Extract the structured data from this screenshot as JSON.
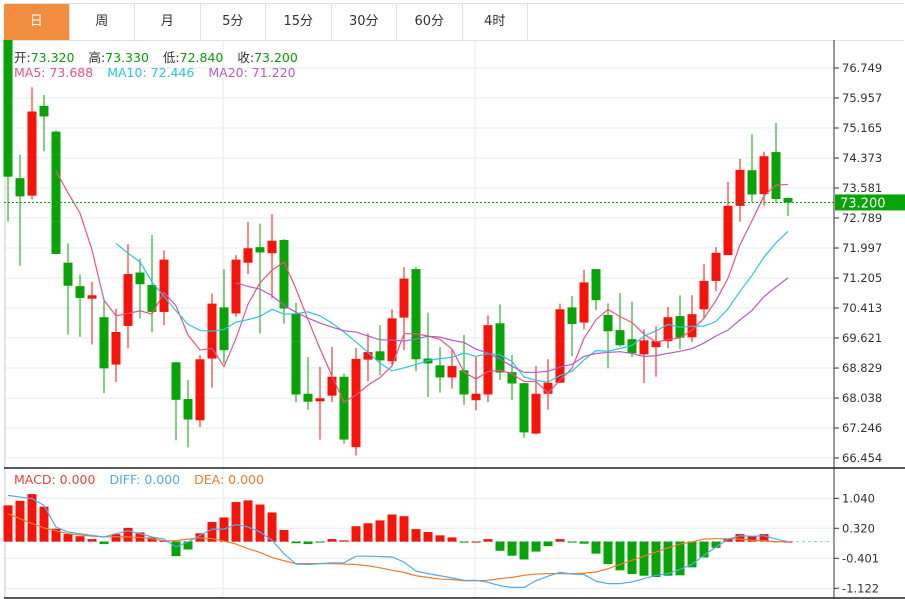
{
  "tabs": [
    {
      "label": "日",
      "active": true
    },
    {
      "label": "周",
      "active": false
    },
    {
      "label": "月",
      "active": false
    },
    {
      "label": "5分",
      "active": false
    },
    {
      "label": "15分",
      "active": false
    },
    {
      "label": "30分",
      "active": false
    },
    {
      "label": "60分",
      "active": false
    },
    {
      "label": "4时",
      "active": false
    }
  ],
  "ohlc_legend": {
    "open_label": "开:",
    "open": "73.320",
    "high_label": "高:",
    "high": "73.330",
    "low_label": "低:",
    "low": "72.840",
    "close_label": "收:",
    "close": "73.200"
  },
  "ma_legend": {
    "ma5": "MA5: 73.688",
    "ma10": "MA10: 72.446",
    "ma20": "MA20: 71.220"
  },
  "macd_legend": {
    "macd": "MACD: 0.000",
    "diff": "DIFF: 0.000",
    "dea": "DEA: 0.000"
  },
  "colors": {
    "up": "#f5130a",
    "down": "#07a307",
    "ma5": "#f05283",
    "ma10": "#2cc6dd",
    "ma20": "#b45fc9",
    "diff": "#55aaee",
    "dea": "#f07b2a",
    "active_tab": "#f28c3f",
    "last_price": "#07a307"
  },
  "chart_data": [
    {
      "type": "candlestick",
      "y_ticks": [
        "76.749",
        "75.957",
        "75.165",
        "74.373",
        "73.581",
        "72.789",
        "71.997",
        "71.205",
        "70.413",
        "69.621",
        "68.829",
        "68.038",
        "67.246",
        "66.454"
      ],
      "ylim": [
        66.454,
        76.749
      ],
      "last_price": "73.200",
      "grid": true,
      "ma_periods": [
        5,
        10,
        20
      ],
      "candles": [
        [
          77.5,
          77.5,
          72.69,
          73.88
        ],
        [
          73.84,
          74.46,
          71.53,
          73.36
        ],
        [
          73.38,
          76.24,
          73.28,
          75.6
        ],
        [
          75.75,
          76.04,
          74.55,
          75.47
        ],
        [
          75.07,
          75.1,
          71.84,
          71.84
        ],
        [
          71.61,
          72.12,
          69.71,
          71.0
        ],
        [
          70.99,
          71.3,
          69.65,
          70.68
        ],
        [
          70.66,
          71.11,
          69.45,
          70.75
        ],
        [
          70.17,
          70.67,
          68.17,
          68.82
        ],
        [
          68.92,
          70.39,
          68.46,
          69.78
        ],
        [
          69.94,
          72.1,
          69.35,
          71.31
        ],
        [
          71.35,
          71.72,
          70.14,
          71.04
        ],
        [
          71.02,
          72.34,
          69.77,
          70.31
        ],
        [
          70.31,
          71.93,
          69.96,
          71.69
        ],
        [
          68.98,
          68.99,
          66.92,
          67.99
        ],
        [
          68.01,
          68.51,
          66.73,
          67.47
        ],
        [
          67.45,
          69.17,
          67.27,
          69.06
        ],
        [
          69.08,
          70.8,
          68.31,
          70.53
        ],
        [
          70.43,
          71.44,
          68.96,
          69.3
        ],
        [
          70.27,
          71.81,
          70.18,
          71.69
        ],
        [
          71.61,
          72.68,
          71.31,
          71.99
        ],
        [
          72.02,
          72.64,
          69.74,
          71.88
        ],
        [
          71.86,
          72.89,
          70.67,
          72.19
        ],
        [
          72.21,
          72.23,
          70.0,
          70.4
        ],
        [
          70.27,
          70.55,
          67.93,
          68.13
        ],
        [
          68.15,
          69.12,
          67.73,
          67.94
        ],
        [
          67.95,
          68.86,
          66.94,
          68.03
        ],
        [
          68.1,
          69.39,
          67.93,
          68.6
        ],
        [
          68.6,
          68.68,
          66.83,
          66.94
        ],
        [
          66.74,
          69.36,
          66.52,
          69.07
        ],
        [
          69.05,
          69.74,
          68.48,
          69.25
        ],
        [
          69.27,
          69.96,
          68.64,
          69.03
        ],
        [
          69.01,
          70.38,
          68.86,
          70.14
        ],
        [
          70.16,
          71.49,
          69.3,
          71.19
        ],
        [
          71.44,
          71.5,
          68.74,
          69.06
        ],
        [
          69.08,
          70.29,
          68.06,
          68.95
        ],
        [
          68.9,
          69.38,
          68.18,
          68.58
        ],
        [
          68.58,
          69.3,
          68.29,
          68.88
        ],
        [
          68.77,
          69.7,
          67.86,
          68.13
        ],
        [
          67.98,
          69.12,
          67.71,
          68.15
        ],
        [
          68.13,
          70.22,
          67.93,
          69.96
        ],
        [
          70.01,
          70.51,
          68.51,
          68.71
        ],
        [
          68.72,
          69.17,
          67.98,
          68.42
        ],
        [
          68.43,
          68.43,
          66.99,
          67.13
        ],
        [
          67.1,
          68.88,
          67.08,
          68.15
        ],
        [
          68.15,
          69.06,
          67.73,
          68.44
        ],
        [
          68.44,
          70.53,
          68.44,
          70.38
        ],
        [
          70.43,
          70.73,
          69.14,
          69.99
        ],
        [
          70.03,
          71.42,
          69.85,
          71.09
        ],
        [
          71.44,
          71.44,
          70.36,
          70.62
        ],
        [
          70.23,
          70.54,
          68.82,
          69.8
        ],
        [
          69.83,
          70.81,
          69.39,
          69.43
        ],
        [
          69.59,
          70.58,
          69.12,
          69.22
        ],
        [
          69.19,
          69.85,
          68.43,
          69.56
        ],
        [
          69.38,
          69.93,
          68.6,
          69.54
        ],
        [
          69.54,
          70.44,
          69.35,
          70.17
        ],
        [
          70.2,
          70.75,
          69.33,
          69.63
        ],
        [
          69.64,
          70.75,
          69.52,
          70.25
        ],
        [
          70.38,
          71.57,
          70.15,
          71.13
        ],
        [
          71.13,
          72.02,
          70.86,
          71.87
        ],
        [
          71.81,
          73.74,
          71.81,
          73.11
        ],
        [
          73.11,
          74.35,
          72.69,
          74.06
        ],
        [
          74.05,
          75.0,
          73.21,
          73.41
        ],
        [
          73.42,
          74.54,
          73.11,
          74.42
        ],
        [
          74.53,
          75.3,
          73.19,
          73.29
        ],
        [
          73.32,
          73.33,
          72.84,
          73.2
        ]
      ]
    },
    {
      "type": "bar+line",
      "y_ticks": [
        "1.040",
        "0.320",
        "-0.401",
        "-1.122"
      ],
      "ylim": [
        -1.122,
        1.04
      ],
      "macd": [
        0.87,
        0.98,
        1.14,
        0.84,
        0.31,
        0.18,
        0.13,
        0.06,
        -0.06,
        0.18,
        0.33,
        0.22,
        0.1,
        0.02,
        -0.35,
        -0.19,
        0.2,
        0.47,
        0.58,
        0.95,
        0.99,
        0.89,
        0.7,
        0.28,
        -0.04,
        -0.06,
        -0.01,
        0.06,
        0.03,
        0.37,
        0.44,
        0.51,
        0.65,
        0.61,
        0.3,
        0.23,
        0.15,
        0.1,
        -0.01,
        0.0,
        0.06,
        -0.22,
        -0.34,
        -0.43,
        -0.24,
        -0.11,
        0.06,
        -0.01,
        -0.05,
        -0.29,
        -0.54,
        -0.69,
        -0.78,
        -0.82,
        -0.85,
        -0.82,
        -0.81,
        -0.62,
        -0.38,
        -0.15,
        0.07,
        0.18,
        0.13,
        0.18,
        0.01,
        0.0
      ],
      "diff": [
        1.11,
        1.07,
        1.03,
        0.87,
        0.35,
        0.23,
        0.19,
        0.15,
        0.11,
        0.19,
        0.26,
        0.19,
        0.11,
        0.06,
        -0.13,
        -0.01,
        0.15,
        0.3,
        0.3,
        0.41,
        0.35,
        0.23,
        0.03,
        -0.29,
        -0.54,
        -0.55,
        -0.53,
        -0.51,
        -0.51,
        -0.35,
        -0.35,
        -0.36,
        -0.37,
        -0.49,
        -0.71,
        -0.77,
        -0.82,
        -0.87,
        -0.93,
        -0.93,
        -0.98,
        -1.06,
        -1.1,
        -1.1,
        -0.94,
        -0.83,
        -0.74,
        -0.78,
        -0.79,
        -0.95,
        -1.01,
        -1.01,
        -0.97,
        -0.89,
        -0.81,
        -0.77,
        -0.67,
        -0.55,
        -0.33,
        -0.13,
        0.06,
        0.14,
        0.13,
        0.14,
        0.06,
        0.0
      ],
      "dea": [
        0.67,
        0.55,
        0.43,
        0.33,
        0.26,
        0.19,
        0.16,
        0.13,
        0.11,
        0.12,
        0.11,
        0.1,
        0.07,
        0.02,
        0.02,
        0.06,
        0.09,
        0.07,
        0.01,
        -0.06,
        -0.17,
        -0.26,
        -0.38,
        -0.46,
        -0.53,
        -0.53,
        -0.53,
        -0.53,
        -0.54,
        -0.55,
        -0.58,
        -0.63,
        -0.69,
        -0.74,
        -0.82,
        -0.86,
        -0.9,
        -0.91,
        -0.94,
        -0.94,
        -0.93,
        -0.89,
        -0.86,
        -0.81,
        -0.78,
        -0.77,
        -0.77,
        -0.77,
        -0.76,
        -0.73,
        -0.65,
        -0.55,
        -0.45,
        -0.35,
        -0.25,
        -0.15,
        -0.06,
        -0.01,
        0.06,
        0.07,
        0.07,
        0.06,
        0.03,
        0.02,
        0.0,
        0.0
      ]
    }
  ]
}
